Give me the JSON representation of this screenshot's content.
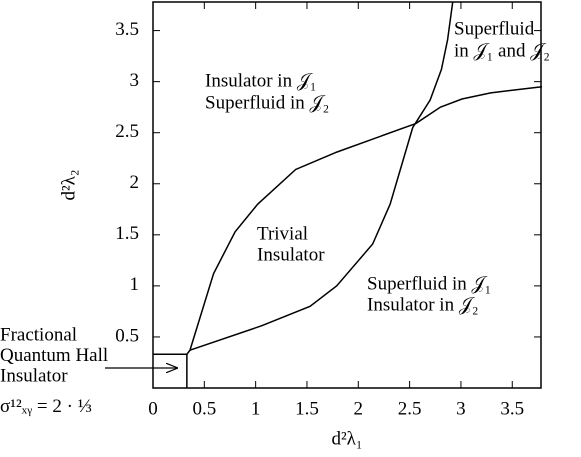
{
  "chart_data": {
    "type": "line",
    "x_label": "d²λ₁",
    "y_label": "d²λ₂",
    "xlim": [
      0,
      3.78
    ],
    "ylim": [
      0,
      3.78
    ],
    "xticks": [
      0,
      0.5,
      1,
      1.5,
      2,
      2.5,
      3,
      3.5
    ],
    "yticks": [
      0.5,
      1,
      1.5,
      2,
      2.5,
      3,
      3.5
    ],
    "series": [
      {
        "color": "#000000",
        "x": [
          0,
          0.33,
          0.33
        ],
        "y": [
          0.33,
          0.33,
          0
        ]
      },
      {
        "color": "#000000",
        "x": [
          0.33,
          0.36,
          0.59,
          0.8,
          1.02,
          1.39,
          1.79,
          2.56,
          2.8,
          3.01,
          3.29,
          3.53,
          3.79
        ],
        "y": [
          0.33,
          0.37,
          1.12,
          1.53,
          1.8,
          2.14,
          2.31,
          2.59,
          2.75,
          2.83,
          2.89,
          2.92,
          2.95
        ]
      },
      {
        "color": "#000000",
        "x": [
          0.36,
          1.06,
          1.53,
          1.79,
          2.14,
          2.31,
          2.53,
          2.7,
          2.81,
          2.87,
          2.92
        ],
        "y": [
          0.37,
          0.61,
          0.8,
          1.0,
          1.41,
          1.8,
          2.55,
          2.82,
          3.12,
          3.41,
          3.78
        ]
      }
    ],
    "annotations": [
      [
        "Superfluid",
        "in 𝒥₁ and 𝒥₂"
      ],
      [
        "Insulator in 𝒥₁",
        "Superfluid in 𝒥₂"
      ],
      [
        "Trivial",
        "Insulator"
      ],
      [
        "Superfluid in 𝒥₁",
        "Insulator in 𝒥₂"
      ],
      [
        "Fractional",
        "Quantum Hall",
        "Insulator",
        "σ¹²ₓᵧ = 2 · ⅓"
      ]
    ]
  }
}
